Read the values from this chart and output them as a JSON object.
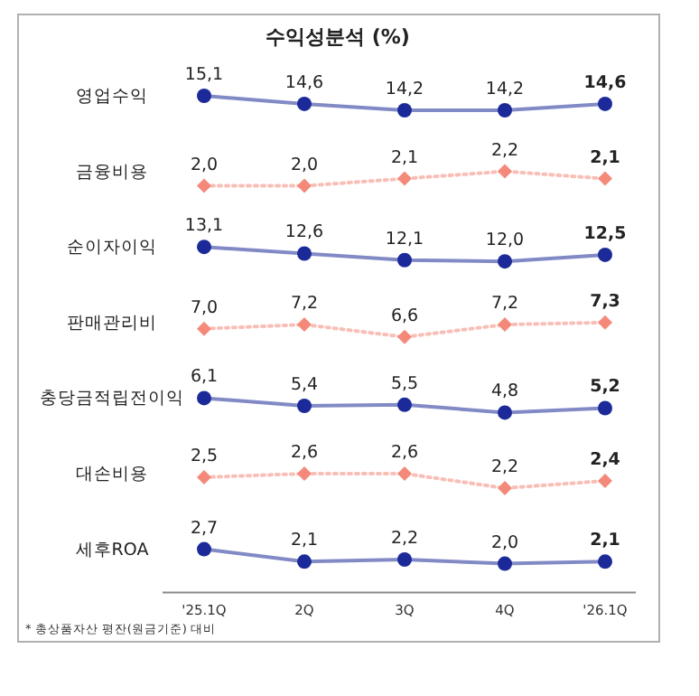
{
  "chart_data": [
    {
      "type": "line",
      "title": "수익성분석 (%)",
      "ylabel": "영업수익",
      "tick_labels": false,
      "marker": "circle",
      "line_style": "solid",
      "series": [
        {
          "color": "#1b2a98",
          "values": [
            15.1,
            14.6,
            14.2,
            14.2,
            14.6
          ],
          "value_labels": [
            "15,1",
            "14,6",
            "14,2",
            "14,2",
            "14,6"
          ]
        }
      ]
    },
    {
      "type": "line",
      "ylabel": "금융비용",
      "tick_labels": false,
      "marker": "diamond",
      "line_style": "dotted",
      "series": [
        {
          "color": "#f4897a",
          "values": [
            2.0,
            2.0,
            2.1,
            2.2,
            2.1
          ],
          "value_labels": [
            "2,0",
            "2,0",
            "2,1",
            "2,2",
            "2,1"
          ]
        }
      ]
    },
    {
      "type": "line",
      "ylabel": "순이자이익",
      "tick_labels": false,
      "marker": "circle",
      "line_style": "solid",
      "series": [
        {
          "color": "#1b2a98",
          "values": [
            13.1,
            12.6,
            12.1,
            12.0,
            12.5
          ],
          "value_labels": [
            "13,1",
            "12,6",
            "12,1",
            "12,0",
            "12,5"
          ]
        }
      ]
    },
    {
      "type": "line",
      "ylabel": "판매관리비",
      "tick_labels": false,
      "marker": "diamond",
      "line_style": "dotted",
      "series": [
        {
          "color": "#f4897a",
          "values": [
            7.0,
            7.2,
            6.6,
            7.2,
            7.3
          ],
          "value_labels": [
            "7,0",
            "7,2",
            "6,6",
            "7,2",
            "7,3"
          ]
        }
      ]
    },
    {
      "type": "line",
      "ylabel": "충당금적립전이익",
      "tick_labels": false,
      "marker": "circle",
      "line_style": "solid",
      "series": [
        {
          "color": "#1b2a98",
          "values": [
            6.1,
            5.4,
            5.5,
            4.8,
            5.2
          ],
          "value_labels": [
            "6,1",
            "5,4",
            "5,5",
            "4,8",
            "5,2"
          ]
        }
      ]
    },
    {
      "type": "line",
      "ylabel": "대손비용",
      "tick_labels": false,
      "marker": "diamond",
      "line_style": "dotted",
      "series": [
        {
          "color": "#f4897a",
          "values": [
            2.5,
            2.6,
            2.6,
            2.2,
            2.4
          ],
          "value_labels": [
            "2,5",
            "2,6",
            "2,6",
            "2,2",
            "2,4"
          ]
        }
      ]
    },
    {
      "type": "line",
      "ylabel": "세후ROA",
      "categories": [
        "'25.1Q",
        "2Q",
        "3Q",
        "4Q",
        "'26.1Q"
      ],
      "tick_labels": "x",
      "marker": "circle",
      "line_style": "solid",
      "series": [
        {
          "color": "#1b2a98",
          "values": [
            2.7,
            2.1,
            2.2,
            2.0,
            2.1
          ],
          "value_labels": [
            "2,7",
            "2,1",
            "2,2",
            "2,0",
            "2,1"
          ]
        }
      ],
      "annotations": [
        "* 총상품자산 평잔(원금기준) 대비"
      ]
    }
  ]
}
